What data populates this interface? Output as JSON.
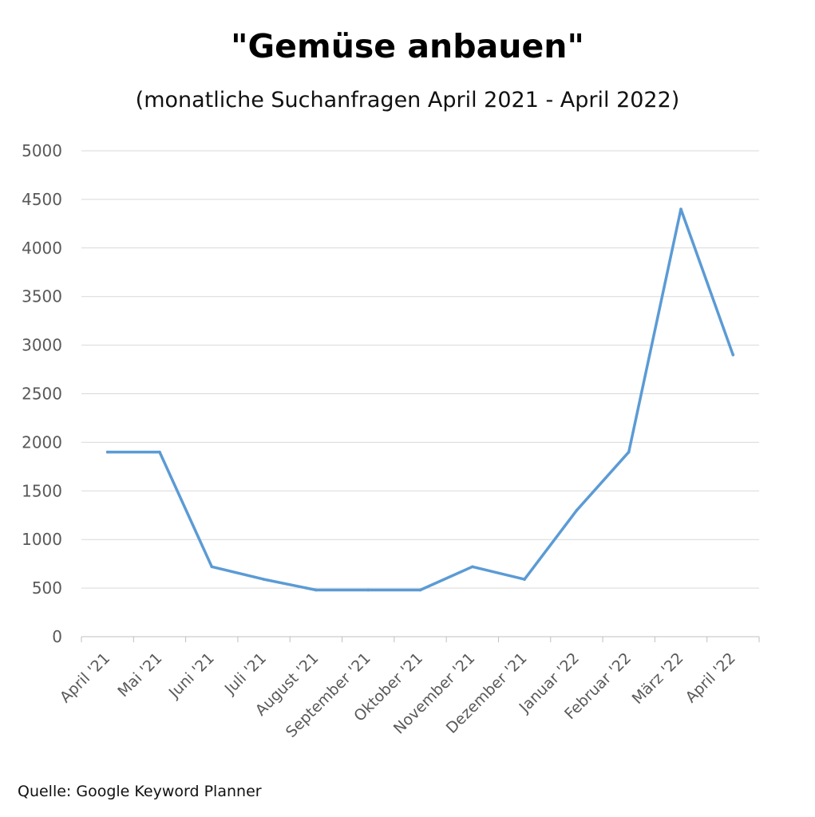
{
  "chart_data": {
    "type": "line",
    "title": "\"Gemüse anbauen\"",
    "subtitle": "(monatliche Suchanfragen April 2021 - April 2022)",
    "categories": [
      "April '21",
      "Mai '21",
      "Juni '21",
      "Juli '21",
      "August '21",
      "September '21",
      "Oktober '21",
      "November '21",
      "Dezember '21",
      "Januar '22",
      "Februar '22",
      "März '22",
      "April '22"
    ],
    "series": [
      {
        "values": [
          1900,
          1900,
          720,
          590,
          480,
          480,
          480,
          720,
          590,
          1300,
          1900,
          4400,
          2900
        ]
      }
    ],
    "ylim": [
      0,
      5000
    ],
    "yticks": [
      0,
      500,
      1000,
      1500,
      2000,
      2500,
      3000,
      3500,
      4000,
      4500,
      5000
    ],
    "grid": true,
    "legend": "none",
    "line_color": "#5b9bd5",
    "grid_color": "#d9d9d9",
    "axis_color": "#bfbfbf"
  },
  "footer": {
    "source": "Quelle: Google Keyword Planner"
  }
}
